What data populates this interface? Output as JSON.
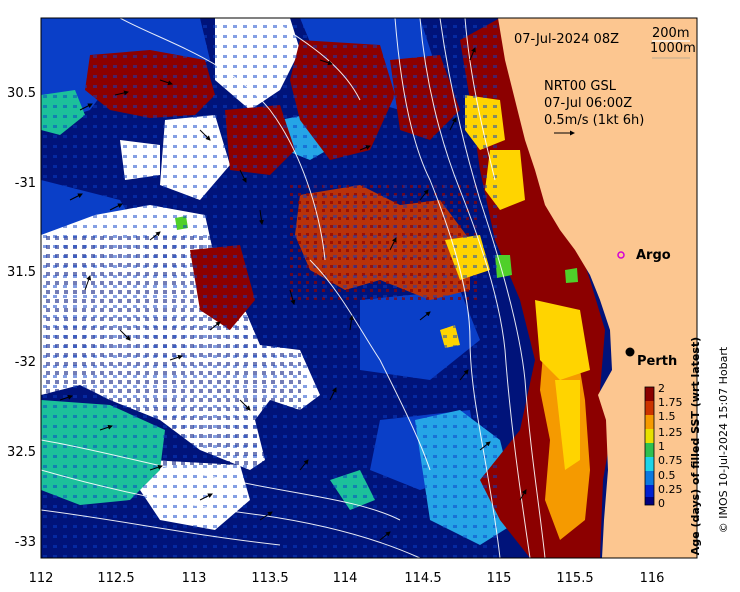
{
  "map": {
    "date_label": "07-Jul-2024 08Z",
    "legend_depth_1": "200m",
    "legend_depth_2": "1000m",
    "current_source": "NRT00 GSL",
    "current_time": "07-Jul 06:00Z",
    "current_scale": "0.5m/s (1kt 6h)",
    "lon_ticks": [
      "112",
      "112.5",
      "113",
      "113.5",
      "114",
      "114.5",
      "115",
      "115.5",
      "116"
    ],
    "lat_ticks": [
      "30.5",
      "-31",
      "31.5",
      "-32",
      "32.5",
      "-33"
    ],
    "places": [
      {
        "name": "Argo"
      },
      {
        "name": "Perth"
      }
    ]
  },
  "colorbar": {
    "title": "Age (days) of filled SST (wrt latest)",
    "ticks": [
      "2",
      "1.75",
      "1.5",
      "1.25",
      "1",
      "0.75",
      "0.5",
      "0.25",
      "0"
    ],
    "colors": [
      "#00007f",
      "#0020d0",
      "#0a78e0",
      "#1cd4e8",
      "#2ec050",
      "#e8e000",
      "#f59a00",
      "#cc3300",
      "#8b0000"
    ]
  },
  "credit": "© IMOS 10-Jul-2024 15:07 Hobart",
  "palette": {
    "land": "#fcc690",
    "white": "#ffffff",
    "navy": "#00137a",
    "blue": "#0a3fc8",
    "cyan": "#25a5e6",
    "teal": "#1cc09a",
    "green": "#4fd02a",
    "yellow": "#ffd400",
    "orange": "#f59a00",
    "brick": "#b8320a",
    "darkred": "#8c0000"
  }
}
